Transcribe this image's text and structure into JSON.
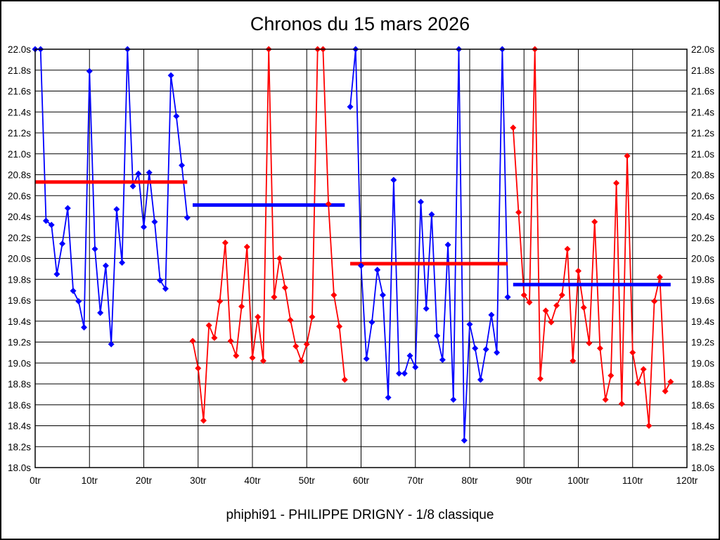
{
  "header": {
    "title": "Chronos du 15 mars 2026"
  },
  "footer": {
    "caption": "phiphi91 - PHILIPPE DRIGNY - 1/8 classique"
  },
  "chart_data": {
    "type": "line",
    "title": "Chronos du 15 mars 2026",
    "xlabel": "",
    "ylabel": "",
    "x_unit": "tr",
    "y_unit": "s",
    "xlim": [
      0,
      120
    ],
    "ylim": [
      18.0,
      22.0
    ],
    "x_tick_step": 10,
    "y_tick_step": 0.2,
    "x_tick_labels": [
      "0tr",
      "10tr",
      "20tr",
      "30tr",
      "40tr",
      "50tr",
      "60tr",
      "70tr",
      "80tr",
      "90tr",
      "100tr",
      "110tr",
      "120tr"
    ],
    "y_tick_labels": [
      "22.0s",
      "21.8s",
      "21.6s",
      "21.4s",
      "21.2s",
      "21.0s",
      "20.8s",
      "20.6s",
      "20.4s",
      "20.2s",
      "20.0s",
      "19.8s",
      "19.6s",
      "19.4s",
      "19.2s",
      "19.0s",
      "18.8s",
      "18.6s",
      "18.4s",
      "18.2s",
      "18.0s"
    ],
    "grid": true,
    "legend": "none",
    "marker": "diamond",
    "colors": {
      "blue": "#0000ff",
      "red": "#ff0000",
      "grid": "#000000"
    },
    "series": [
      {
        "name": "manche-1",
        "color": "#0000ff",
        "start_x": 0,
        "values": [
          22.0,
          22.0,
          20.36,
          20.32,
          19.85,
          20.14,
          20.48,
          19.69,
          19.59,
          19.34,
          21.79,
          20.09,
          19.48,
          19.93,
          19.18,
          20.47,
          19.96,
          22.0,
          20.69,
          20.81,
          20.3,
          20.82,
          20.35,
          19.79,
          19.71,
          21.75,
          21.36,
          20.89,
          20.39
        ],
        "mean": {
          "value": 20.73,
          "color": "#ff0000"
        }
      },
      {
        "name": "manche-2",
        "color": "#ff0000",
        "start_x": 29,
        "values": [
          19.21,
          18.95,
          18.45,
          19.36,
          19.24,
          19.59,
          20.15,
          19.21,
          19.07,
          19.54,
          20.11,
          19.05,
          19.44,
          19.02,
          22.0,
          19.63,
          20.0,
          19.72,
          19.41,
          19.16,
          19.02,
          19.18,
          19.44,
          22.0,
          22.0,
          20.52,
          19.65,
          19.35,
          18.84
        ],
        "mean": {
          "value": 20.51,
          "color": "#0000ff"
        }
      },
      {
        "name": "manche-3",
        "color": "#0000ff",
        "start_x": 58,
        "values": [
          21.45,
          22.0,
          19.93,
          19.04,
          19.39,
          19.89,
          19.65,
          18.67,
          20.75,
          18.9,
          18.9,
          19.07,
          18.96,
          20.54,
          19.52,
          20.42,
          19.26,
          19.03,
          20.13,
          18.65,
          22.0,
          18.26,
          19.37,
          19.14,
          18.84,
          19.13,
          19.46,
          19.1,
          22.0,
          19.63
        ],
        "mean": {
          "value": 19.95,
          "color": "#ff0000"
        }
      },
      {
        "name": "manche-4",
        "color": "#ff0000",
        "start_x": 88,
        "values": [
          21.25,
          20.44,
          19.65,
          19.58,
          22.0,
          18.85,
          19.5,
          19.39,
          19.55,
          19.65,
          20.09,
          19.02,
          19.88,
          19.53,
          19.19,
          20.35,
          19.14,
          18.65,
          18.88,
          20.72,
          18.61,
          20.98,
          19.1,
          18.81,
          18.94,
          18.4,
          19.59,
          19.82,
          18.73,
          18.82
        ],
        "mean": {
          "value": 19.75,
          "color": "#0000ff"
        }
      }
    ]
  }
}
